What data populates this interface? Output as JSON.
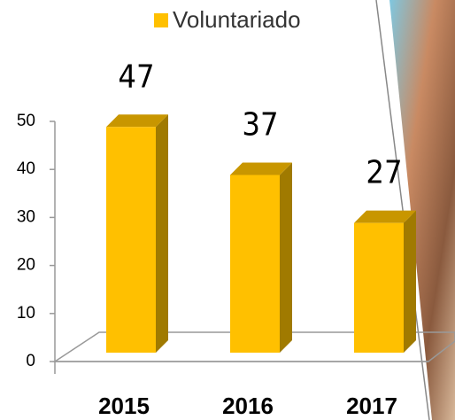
{
  "chart_data": {
    "type": "bar",
    "categories": [
      "2015",
      "2016",
      "2017"
    ],
    "series": [
      {
        "name": "Voluntariado",
        "color": "#ffc000",
        "values": [
          47,
          37,
          27
        ]
      }
    ],
    "ylim": [
      0,
      50
    ],
    "yticks": [
      0,
      10,
      20,
      30,
      40,
      50
    ]
  }
}
